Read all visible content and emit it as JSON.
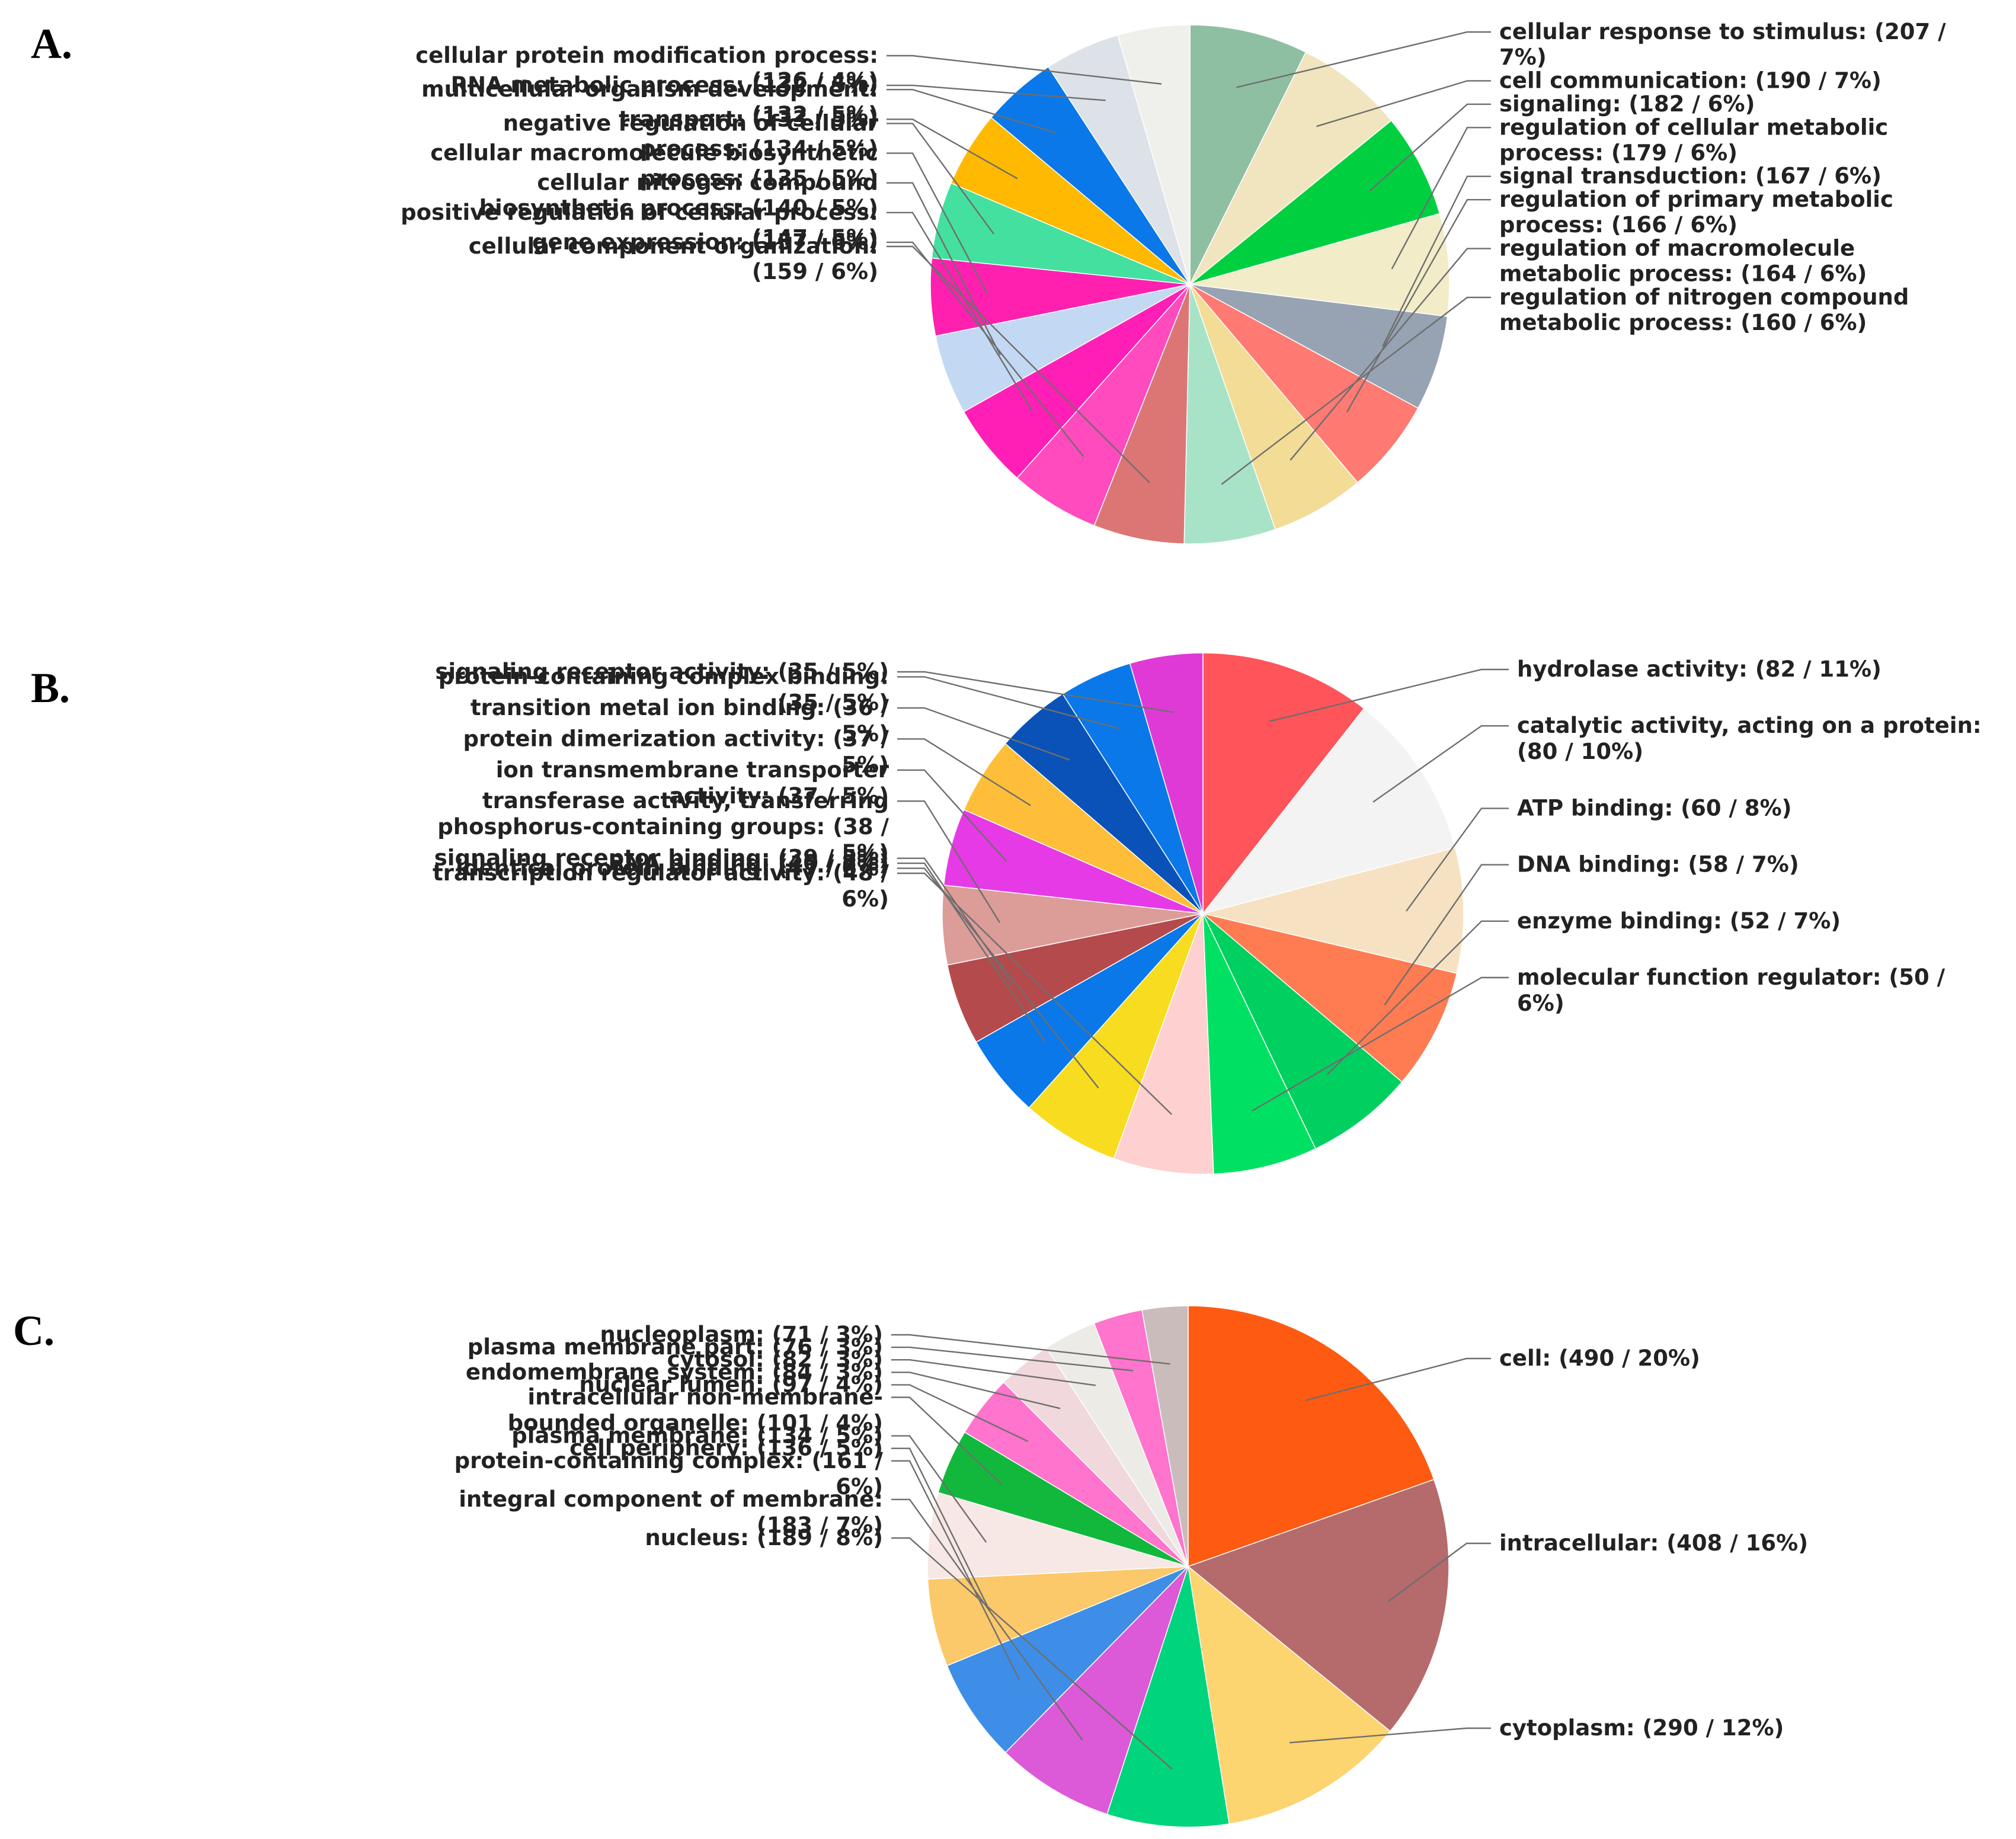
{
  "chart_data": [
    {
      "type": "pie",
      "panel_label": "A.",
      "start": "12 o'clock, clockwise",
      "slices": [
        {
          "label": [
            "cellular response to stimulus: (207 /",
            "7%)"
          ],
          "count": 207,
          "percent": 7,
          "color": "#8fbfa3"
        },
        {
          "label": [
            "cell communication: (190 / 7%)"
          ],
          "count": 190,
          "percent": 7,
          "color": "#f1e5bf"
        },
        {
          "label": [
            "signaling: (182 / 6%)"
          ],
          "count": 182,
          "percent": 6,
          "color": "#00d040"
        },
        {
          "label": [
            "regulation of cellular metabolic",
            "process: (179 / 6%)"
          ],
          "count": 179,
          "percent": 6,
          "color": "#f2edc8"
        },
        {
          "label": [
            "signal transduction: (167 / 6%)"
          ],
          "count": 167,
          "percent": 6,
          "color": "#97a3b3"
        },
        {
          "label": [
            "regulation of primary metabolic",
            "process: (166 / 6%)"
          ],
          "count": 166,
          "percent": 6,
          "color": "#ff7a72"
        },
        {
          "label": [
            "regulation of macromolecule",
            "metabolic process: (164 / 6%)"
          ],
          "count": 164,
          "percent": 6,
          "color": "#f2dc96"
        },
        {
          "label": [
            "regulation of nitrogen compound",
            "metabolic process: (160 / 6%)"
          ],
          "count": 160,
          "percent": 6,
          "color": "#a8e3c8"
        },
        {
          "label": [
            "cellular component organization:",
            "(159 / 6%)"
          ],
          "count": 159,
          "percent": 6,
          "color": "#dc7675"
        },
        {
          "label": [
            "gene expression: (157 / 6%)"
          ],
          "count": 157,
          "percent": 6,
          "color": "#ff4bbd"
        },
        {
          "label": [
            "positive regulation of cellular process:",
            "(147 / 5%)"
          ],
          "count": 147,
          "percent": 5,
          "color": "#ff1fb6"
        },
        {
          "label": [
            "cellular nitrogen compound",
            "biosynthetic process: (140 / 5%)"
          ],
          "count": 140,
          "percent": 5,
          "color": "#c3d8f2"
        },
        {
          "label": [
            "cellular macromolecule biosynthetic",
            "process: (135 / 5%)"
          ],
          "count": 135,
          "percent": 5,
          "color": "#ff20b0"
        },
        {
          "label": [
            "negative regulation of cellular",
            "process: (134 / 5%)"
          ],
          "count": 134,
          "percent": 5,
          "color": "#44e0a0"
        },
        {
          "label": [
            "transport: (133 / 5%)"
          ],
          "count": 133,
          "percent": 5,
          "color": "#ffb900"
        },
        {
          "label": [
            "multicellular organism development:",
            "(132 / 5%)"
          ],
          "count": 132,
          "percent": 5,
          "color": "#0a78e8"
        },
        {
          "label": [
            "RNA metabolic process: (132 / 5%)"
          ],
          "count": 132,
          "percent": 5,
          "color": "#dde1e8"
        },
        {
          "label": [
            "cellular protein modification process:",
            "(126 / 4%)"
          ],
          "count": 126,
          "percent": 4,
          "color": "#efefeb"
        }
      ]
    },
    {
      "type": "pie",
      "panel_label": "B.",
      "start": "12 o'clock, clockwise",
      "slices": [
        {
          "label": [
            "hydrolase activity: (82 / 11%)"
          ],
          "count": 82,
          "percent": 11,
          "color": "#ff545a"
        },
        {
          "label": [
            "catalytic activity, acting on a protein:",
            "(80 / 10%)"
          ],
          "count": 80,
          "percent": 10,
          "color": "#f3f3f3"
        },
        {
          "label": [
            "ATP binding: (60 / 8%)"
          ],
          "count": 60,
          "percent": 8,
          "color": "#f6e2c2"
        },
        {
          "label": [
            "DNA binding: (58 / 7%)"
          ],
          "count": 58,
          "percent": 7,
          "color": "#ff7c52"
        },
        {
          "label": [
            "enzyme binding: (52 / 7%)"
          ],
          "count": 52,
          "percent": 7,
          "color": "#00d060"
        },
        {
          "label": [
            "molecular function regulator: (50 /",
            "6%)"
          ],
          "count": 50,
          "percent": 6,
          "color": "#00e062"
        },
        {
          "label": [
            "transcription regulator activity: (48 /",
            "6%)"
          ],
          "count": 48,
          "percent": 6,
          "color": "#ffd0d0"
        },
        {
          "label": [
            "identical protein binding: (47 / 6%)"
          ],
          "count": 47,
          "percent": 6,
          "color": "#f7dc20"
        },
        {
          "label": [
            "RNA binding: (40 / 5%)"
          ],
          "count": 40,
          "percent": 5,
          "color": "#0a78e8"
        },
        {
          "label": [
            "signaling receptor binding: (39 / 5%)"
          ],
          "count": 39,
          "percent": 5,
          "color": "#b54a4c"
        },
        {
          "label": [
            "transferase activity, transferring",
            "phosphorus-containing groups: (38 /",
            "5%)"
          ],
          "count": 38,
          "percent": 5,
          "color": "#dc9c98"
        },
        {
          "label": [
            "ion transmembrane transporter",
            "activity: (37 / 5%)"
          ],
          "count": 37,
          "percent": 5,
          "color": "#e63ae6"
        },
        {
          "label": [
            "protein dimerization activity: (37 /",
            "5%)"
          ],
          "count": 37,
          "percent": 5,
          "color": "#ffbe3a"
        },
        {
          "label": [
            "transition metal ion binding: (36 /",
            "5%)"
          ],
          "count": 36,
          "percent": 5,
          "color": "#0a52b8"
        },
        {
          "label": [
            "protein-containing complex binding:",
            "(35 / 5%)"
          ],
          "count": 35,
          "percent": 5,
          "color": "#0a78e8"
        },
        {
          "label": [
            "signaling receptor activity: (35 / 5%)"
          ],
          "count": 35,
          "percent": 5,
          "color": "#e03ad6"
        }
      ]
    },
    {
      "type": "pie",
      "panel_label": "C.",
      "start": "12 o'clock, clockwise",
      "slices": [
        {
          "label": [
            "cell: (490 / 20%)"
          ],
          "count": 490,
          "percent": 20,
          "color": "#ff5a12"
        },
        {
          "label": [
            "intracellular: (408 / 16%)"
          ],
          "count": 408,
          "percent": 16,
          "color": "#b56a6c"
        },
        {
          "label": [
            "cytoplasm: (290 / 12%)"
          ],
          "count": 290,
          "percent": 12,
          "color": "#fcd470"
        },
        {
          "label": [
            "nucleus: (189 / 8%)"
          ],
          "count": 189,
          "percent": 8,
          "color": "#00d47c"
        },
        {
          "label": [
            "integral component of membrane:",
            "(183 / 7%)"
          ],
          "count": 183,
          "percent": 7,
          "color": "#dc5ad8"
        },
        {
          "label": [
            "protein-containing complex: (161 /",
            "6%)"
          ],
          "count": 161,
          "percent": 6,
          "color": "#3e8ee8"
        },
        {
          "label": [
            "cell periphery: (136 / 5%)"
          ],
          "count": 136,
          "percent": 5,
          "color": "#fbc86a"
        },
        {
          "label": [
            "plasma membrane: (134 / 5%)"
          ],
          "count": 134,
          "percent": 5,
          "color": "#f7e8e5"
        },
        {
          "label": [
            "intracellular non-membrane-",
            "bounded organelle: (101 / 4%)"
          ],
          "count": 101,
          "percent": 4,
          "color": "#12b83c"
        },
        {
          "label": [
            "nuclear lumen: (97 / 4%)"
          ],
          "count": 97,
          "percent": 4,
          "color": "#ff74cc"
        },
        {
          "label": [
            "endomembrane system: (84 / 3%)"
          ],
          "count": 84,
          "percent": 3,
          "color": "#f0d8dc"
        },
        {
          "label": [
            "cytosol: (82 / 3%)"
          ],
          "count": 82,
          "percent": 3,
          "color": "#ecebe6"
        },
        {
          "label": [
            "plasma membrane part: (76 / 3%)"
          ],
          "count": 76,
          "percent": 3,
          "color": "#ff74cc"
        },
        {
          "label": [
            "nucleoplasm: (71 / 3%)"
          ],
          "count": 71,
          "percent": 3,
          "color": "#cbbcbc"
        }
      ]
    }
  ]
}
